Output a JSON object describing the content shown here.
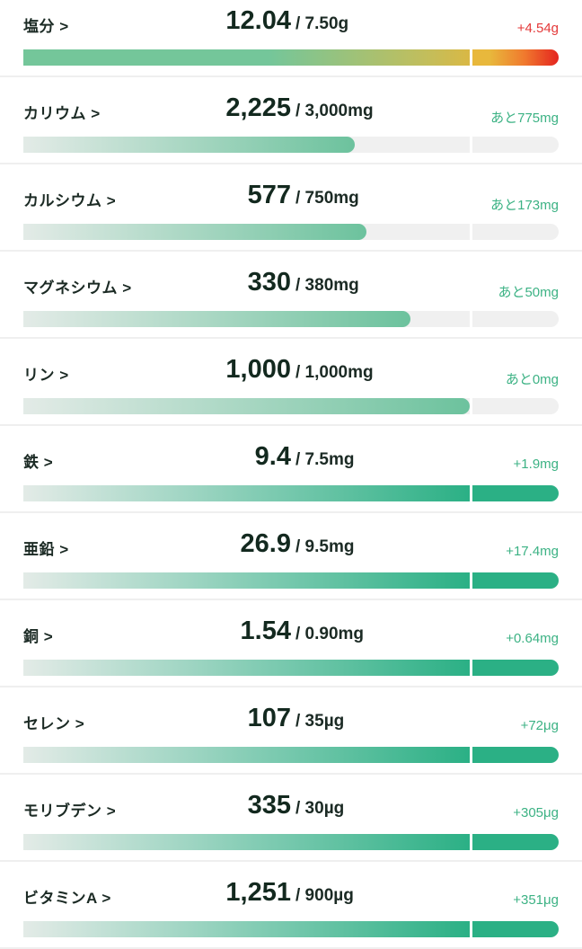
{
  "colors": {
    "accent": "#2bb085",
    "over": "#e43a3a",
    "track": "#f0f0f0"
  },
  "rows": [
    {
      "label": "塩分 >",
      "value": "12.04",
      "target": "/ 7.50g",
      "remainder": "+4.54g",
      "fraction": 1.0,
      "status": "over-warning"
    },
    {
      "label": "カリウム >",
      "value": "2,225",
      "target": "/ 3,000mg",
      "remainder": "あと775mg",
      "fraction": 0.742,
      "status": "under"
    },
    {
      "label": "カルシウム >",
      "value": "577",
      "target": "/ 750mg",
      "remainder": "あと173mg",
      "fraction": 0.769,
      "status": "under"
    },
    {
      "label": "マグネシウム >",
      "value": "330",
      "target": "/ 380mg",
      "remainder": "あと50mg",
      "fraction": 0.868,
      "status": "under"
    },
    {
      "label": "リン >",
      "value": "1,000",
      "target": "/ 1,000mg",
      "remainder": "あと0mg",
      "fraction": 1.0,
      "status": "met"
    },
    {
      "label": "鉄 >",
      "value": "9.4",
      "target": "/ 7.5mg",
      "remainder": "+1.9mg",
      "fraction": 1.0,
      "status": "over"
    },
    {
      "label": "亜鉛 >",
      "value": "26.9",
      "target": "/ 9.5mg",
      "remainder": "+17.4mg",
      "fraction": 1.0,
      "status": "over"
    },
    {
      "label": "銅 >",
      "value": "1.54",
      "target": "/ 0.90mg",
      "remainder": "+0.64mg",
      "fraction": 1.0,
      "status": "over"
    },
    {
      "label": "セレン >",
      "value": "107",
      "target": "/ 35µg",
      "remainder": "+72μg",
      "fraction": 1.0,
      "status": "over"
    },
    {
      "label": "モリブデン >",
      "value": "335",
      "target": "/ 30µg",
      "remainder": "+305μg",
      "fraction": 1.0,
      "status": "over"
    },
    {
      "label": "ビタミンA >",
      "value": "1,251",
      "target": "/ 900µg",
      "remainder": "+351μg",
      "fraction": 1.0,
      "status": "over"
    }
  ]
}
